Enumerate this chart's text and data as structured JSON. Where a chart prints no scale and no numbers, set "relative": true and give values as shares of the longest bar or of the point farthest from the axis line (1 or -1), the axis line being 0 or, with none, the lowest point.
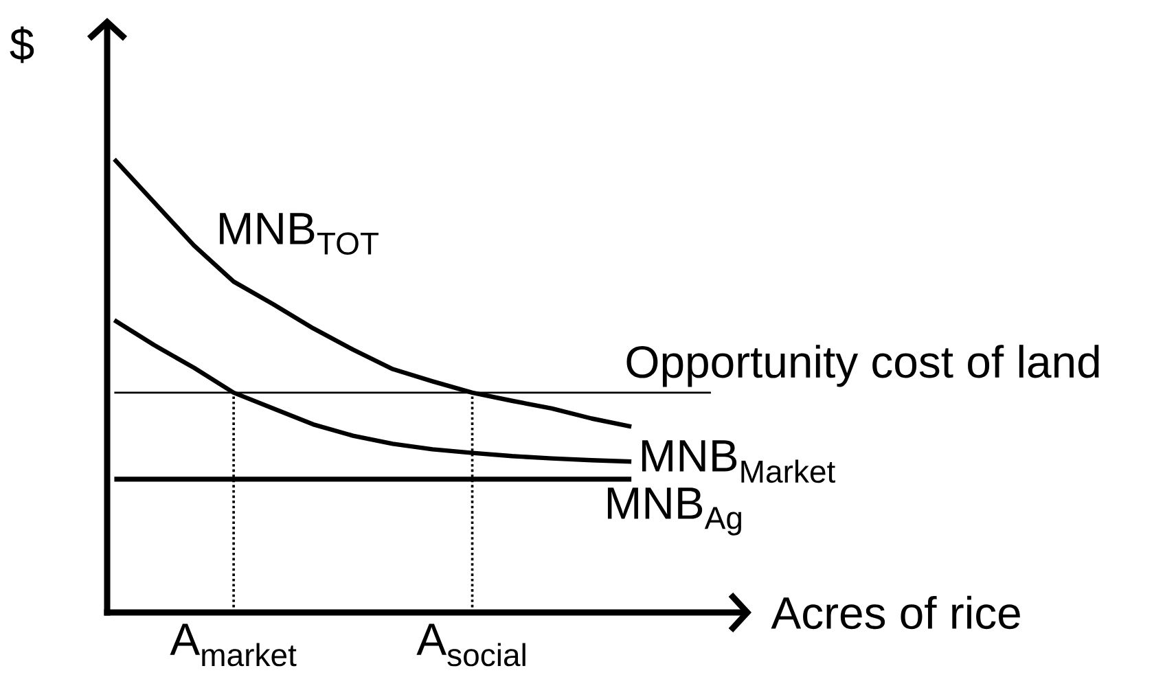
{
  "chart_data": {
    "type": "line",
    "relative": true,
    "xlabel": "Acres of rice",
    "ylabel": "$",
    "categories": [
      null,
      null,
      null,
      "A$_{market}$",
      null,
      null,
      null,
      null,
      null,
      "A$_{social}$",
      null,
      null,
      null,
      null,
      null,
      null
    ],
    "legend": false,
    "marker": "none",
    "line_style": "solid",
    "series": [
      {
        "name": "MNB$_{TOT}$",
        "color": "#000000",
        "values": [
          1,
          0.905,
          0.81,
          0.73,
          0.68,
          0.627,
          0.58,
          0.537,
          0.51,
          0.485,
          0.467,
          0.45,
          0.428,
          0.41,
          null,
          null
        ]
      },
      {
        "name": "MNB$_{Market}$",
        "color": "#000000",
        "values": [
          0.645,
          0.59,
          0.54,
          0.485,
          0.45,
          0.415,
          0.39,
          0.372,
          0.36,
          0.352,
          0.345,
          0.34,
          0.336,
          0.333,
          null,
          null
        ]
      },
      {
        "name": "Opportunity cost of land",
        "color": "#000000",
        "values": [
          0.485,
          0.485,
          0.485,
          0.485,
          0.485,
          0.485,
          0.485,
          0.485,
          0.485,
          0.485,
          0.485,
          0.485,
          0.485,
          0.485,
          0.485,
          0.485
        ]
      },
      {
        "name": "MNB$_{Ag}$",
        "color": "#000000",
        "values": [
          0.294,
          0.294,
          0.294,
          0.294,
          0.294,
          0.294,
          0.294,
          0.294,
          0.294,
          0.294,
          0.294,
          0.294,
          0.294,
          0.294,
          null,
          null
        ]
      }
    ],
    "ref_lines": [
      {
        "axis": "x",
        "value": "A$_{market}$",
        "line_style": "dotted",
        "color": "#000000"
      },
      {
        "axis": "x",
        "value": "A$_{social}$",
        "line_style": "dotted",
        "color": "#000000"
      }
    ]
  }
}
